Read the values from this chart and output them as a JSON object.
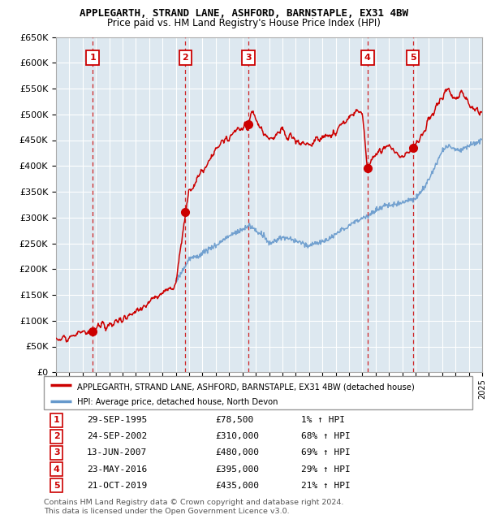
{
  "title": "APPLEGARTH, STRAND LANE, ASHFORD, BARNSTAPLE, EX31 4BW",
  "subtitle": "Price paid vs. HM Land Registry's House Price Index (HPI)",
  "sale_color": "#cc0000",
  "hpi_color": "#6699cc",
  "legend1": "APPLEGARTH, STRAND LANE, ASHFORD, BARNSTAPLE, EX31 4BW (detached house)",
  "legend2": "HPI: Average price, detached house, North Devon",
  "table_rows": [
    {
      "num": "1",
      "date": "29-SEP-1995",
      "price": "£78,500",
      "pct": "1% ↑ HPI"
    },
    {
      "num": "2",
      "date": "24-SEP-2002",
      "price": "£310,000",
      "pct": "68% ↑ HPI"
    },
    {
      "num": "3",
      "date": "13-JUN-2007",
      "price": "£480,000",
      "pct": "69% ↑ HPI"
    },
    {
      "num": "4",
      "date": "23-MAY-2016",
      "price": "£395,000",
      "pct": "29% ↑ HPI"
    },
    {
      "num": "5",
      "date": "21-OCT-2019",
      "price": "£435,000",
      "pct": "21% ↑ HPI"
    }
  ],
  "footer": "Contains HM Land Registry data © Crown copyright and database right 2024.\nThis data is licensed under the Open Government Licence v3.0.",
  "sale_dates": [
    1995.75,
    2002.72,
    2007.45,
    2016.39,
    2019.8
  ],
  "sale_prices": [
    78500,
    310000,
    480000,
    395000,
    435000
  ],
  "sale_labels": [
    "1",
    "2",
    "3",
    "4",
    "5"
  ],
  "ylim": [
    0,
    650000
  ],
  "yticks": [
    0,
    50000,
    100000,
    150000,
    200000,
    250000,
    300000,
    350000,
    400000,
    450000,
    500000,
    550000,
    600000,
    650000
  ],
  "xlim_start": 1993,
  "xlim_end": 2025,
  "chart_bg": "#dde8f0",
  "grid_color": "#ffffff"
}
